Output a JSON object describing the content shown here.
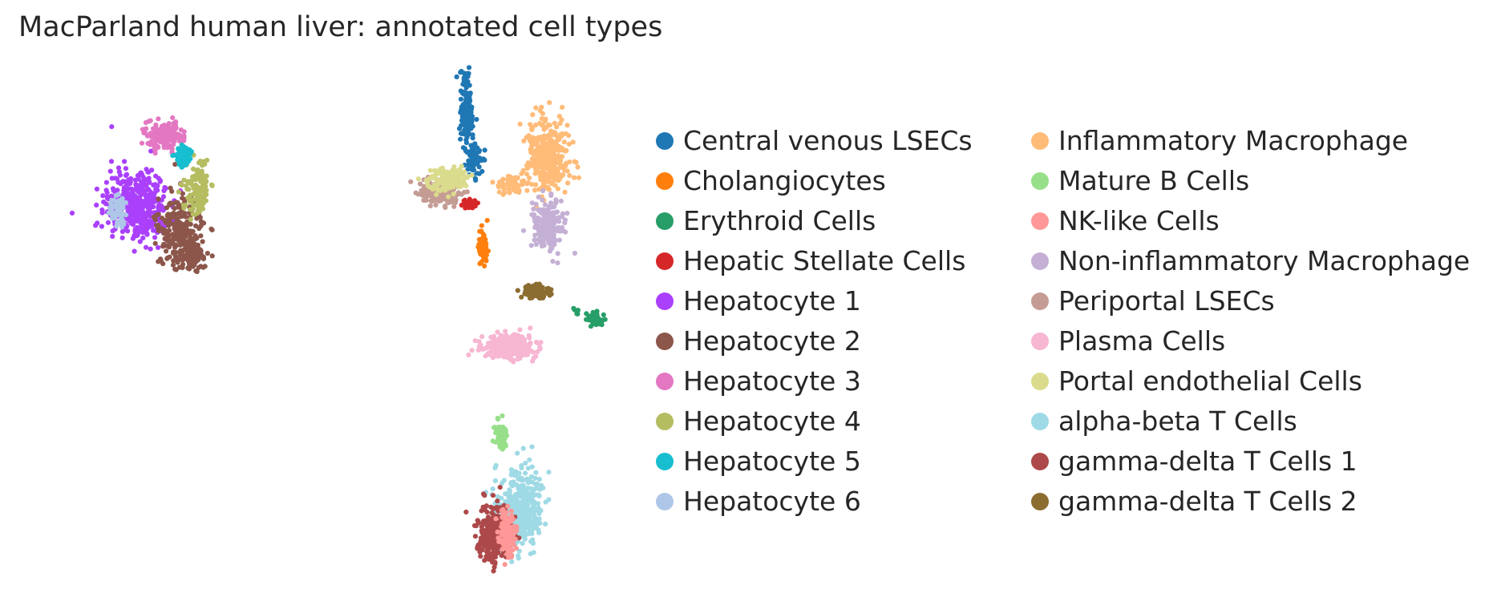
{
  "chart_data": {
    "type": "scatter",
    "title": "MacParland human liver: annotated cell types",
    "xlabel": "",
    "ylabel": "",
    "axes_visible": false,
    "grid": false,
    "legend_placement": "right",
    "legend_columns": 2,
    "point_size": "small",
    "categories": [
      "Central venous LSECs",
      "Cholangiocytes",
      "Erythroid Cells",
      "Hepatic Stellate Cells",
      "Hepatocyte 1",
      "Hepatocyte 2",
      "Hepatocyte 3",
      "Hepatocyte 4",
      "Hepatocyte 5",
      "Hepatocyte 6",
      "Inflammatory Macrophage",
      "Mature B Cells",
      "NK-like Cells",
      "Non-inflammatory Macrophage",
      "Periportal LSECs",
      "Plasma Cells",
      "Portal endothelial Cells",
      "alpha-beta T Cells",
      "gamma-delta T Cells 1",
      "gamma-delta T Cells 2"
    ],
    "colors": [
      "#1f77b4",
      "#ff7f0e",
      "#279e68",
      "#d62728",
      "#aa40fc",
      "#8c564b",
      "#e377c2",
      "#b5bd61",
      "#17becf",
      "#aec7e8",
      "#ffbb78",
      "#98df8a",
      "#ff9896",
      "#c5b0d5",
      "#c49c94",
      "#f7b6d2",
      "#dbdb8d",
      "#9edae5",
      "#ad494a",
      "#8c6d31"
    ]
  }
}
